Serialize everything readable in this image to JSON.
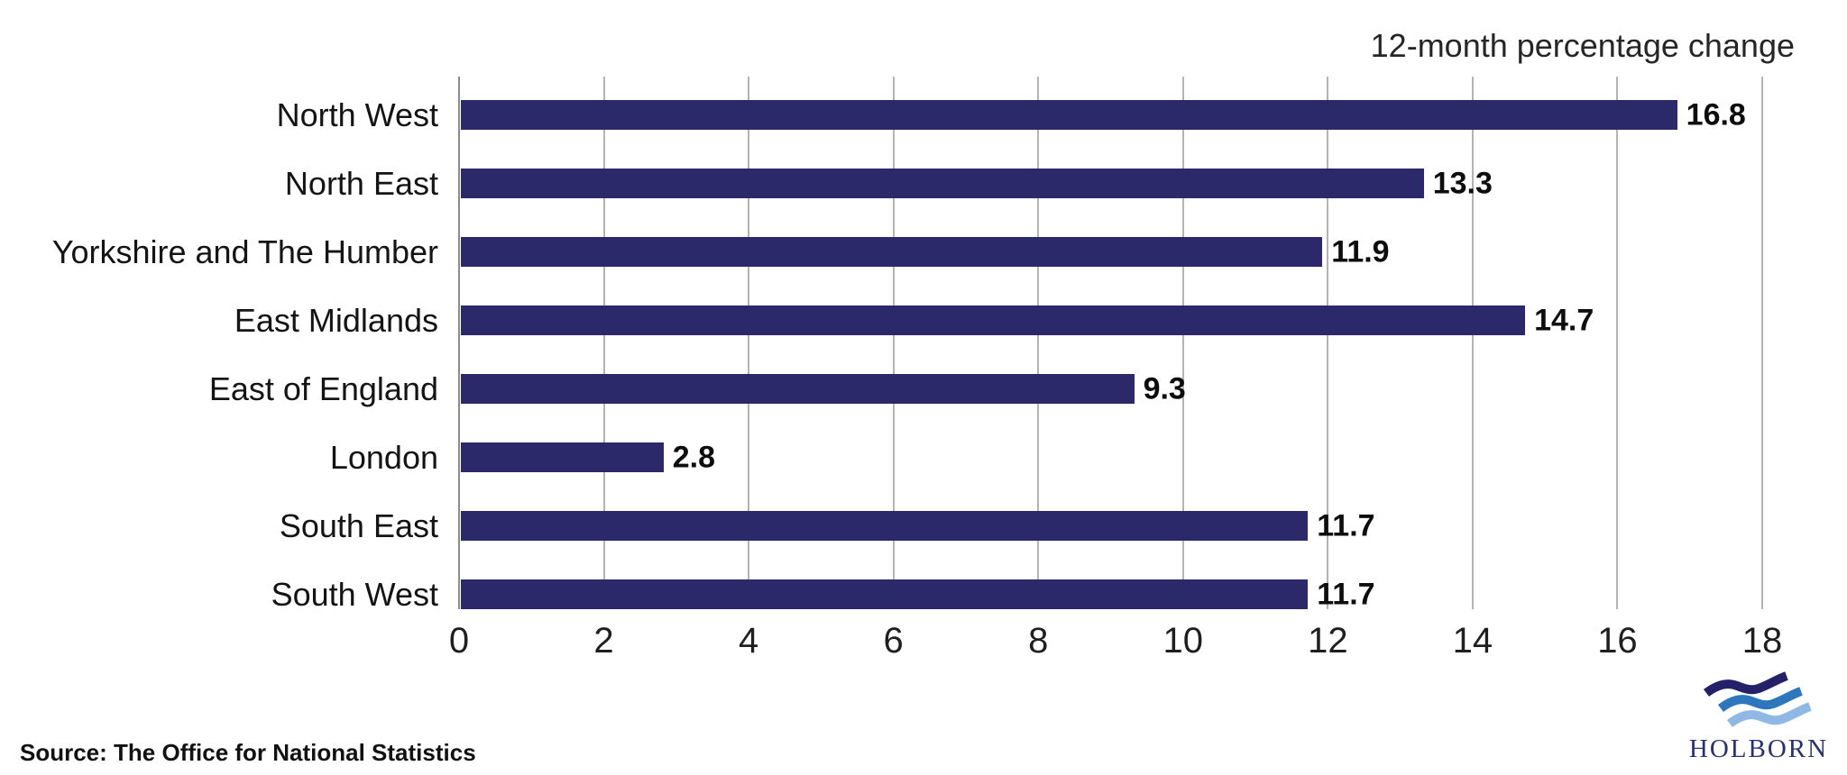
{
  "chart_data": {
    "type": "bar",
    "orientation": "horizontal",
    "title": "12-month percentage change",
    "xlabel": "",
    "ylabel": "",
    "categories": [
      "North West",
      "North East",
      "Yorkshire and The Humber",
      "East Midlands",
      "East of England",
      "London",
      "South East",
      "South West"
    ],
    "values": [
      16.8,
      13.3,
      11.9,
      14.7,
      9.3,
      2.8,
      11.7,
      11.7
    ],
    "value_labels": [
      "16.8",
      "13.3",
      "11.9",
      "14.7",
      "9.3",
      "2.8",
      "11.7",
      "11.7"
    ],
    "xlim": [
      0,
      18
    ],
    "xticks": [
      0,
      2,
      4,
      6,
      8,
      10,
      12,
      14,
      16,
      18
    ],
    "grid": true,
    "legend": "none",
    "bar_color": "#2b296a",
    "gridline_color": "#b3b3b3",
    "axis_line_color": "#8c8c8c"
  },
  "footer": {
    "source": "Source: The Office for National Statistics"
  },
  "logo": {
    "text": "HOLBORN",
    "colors": {
      "wave_dark": "#252169",
      "wave_mid": "#2e77bd",
      "wave_light": "#8fb9e4",
      "wordmark": "#2a316f"
    }
  }
}
